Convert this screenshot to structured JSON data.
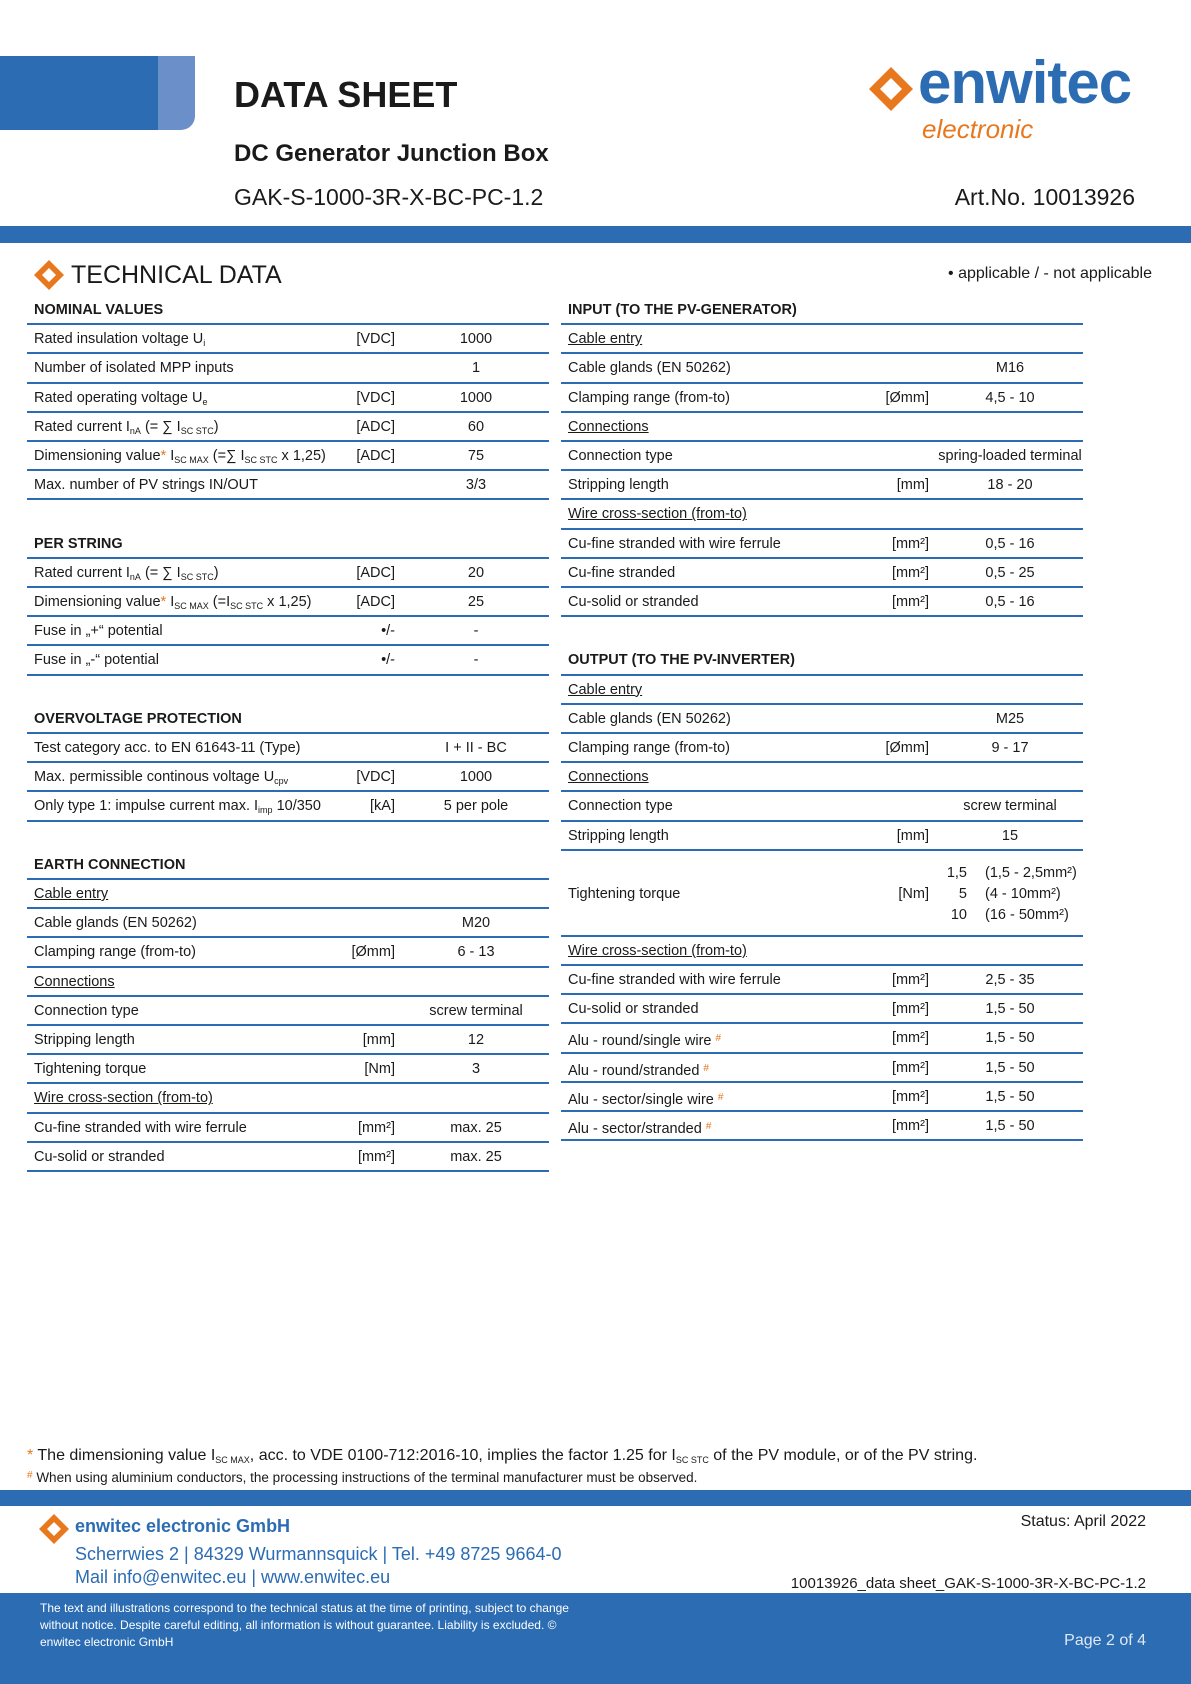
{
  "header": {
    "title": "DATA SHEET",
    "subtitle": "DC Generator Junction Box",
    "model": "GAK-S-1000-3R-X-BC-PC-1.2",
    "art_no": "Art.No. 10013926",
    "logo": {
      "name": "enwitec",
      "tagline": "electronic"
    }
  },
  "technical_data": {
    "title": "TECHNICAL DATA",
    "legend": "•  applicable  /  - not applicable",
    "columns": [
      [
        {
          "title": "NOMINAL VALUES",
          "rows": [
            {
              "label": [
                {
                  "text": "Rated insulation voltage U"
                },
                {
                  "sub": "i"
                }
              ],
              "unit": "[VDC]",
              "value": "1000"
            },
            {
              "label": [
                {
                  "text": "Number of isolated MPP inputs"
                }
              ],
              "value": "1"
            },
            {
              "label": [
                {
                  "text": "Rated operating voltage U"
                },
                {
                  "sub": "e"
                }
              ],
              "unit": "[VDC]",
              "value": "1000"
            },
            {
              "label": [
                {
                  "text": "Rated current I"
                },
                {
                  "sub": "nA"
                },
                {
                  "text": " (= ∑ I"
                },
                {
                  "sub": "SC STC"
                },
                {
                  "text": ")"
                }
              ],
              "unit": "[ADC]",
              "value": "60"
            },
            {
              "label": [
                {
                  "text": "Dimensioning value"
                },
                {
                  "mark": "*"
                },
                {
                  "text": " I"
                },
                {
                  "sub": "SC MAX"
                },
                {
                  "text": " (=∑ I"
                },
                {
                  "sub": "SC STC"
                },
                {
                  "text": " x 1,25)"
                }
              ],
              "unit": "[ADC]",
              "value": "75"
            },
            {
              "label": [
                {
                  "text": "Max. number of PV strings IN/OUT"
                }
              ],
              "value": "3/3"
            }
          ]
        },
        {
          "title": "PER STRING",
          "rows": [
            {
              "label": [
                {
                  "text": "Rated current I"
                },
                {
                  "sub": "nA"
                },
                {
                  "text": " (= ∑ I"
                },
                {
                  "sub": "SC STC"
                },
                {
                  "text": ")"
                }
              ],
              "unit": "[ADC]",
              "value": "20"
            },
            {
              "label": [
                {
                  "text": "Dimensioning value"
                },
                {
                  "mark": "*"
                },
                {
                  "text": " I"
                },
                {
                  "sub": "SC MAX"
                },
                {
                  "text": " (=I"
                },
                {
                  "sub": "SC STC"
                },
                {
                  "text": " x 1,25)"
                }
              ],
              "unit": "[ADC]",
              "value": "25"
            },
            {
              "label": [
                {
                  "text": "Fuse in „+“ potential"
                }
              ],
              "unit": "•/-",
              "value": "-"
            },
            {
              "label": [
                {
                  "text": "Fuse in „-“ potential"
                }
              ],
              "unit": "•/-",
              "value": "-"
            }
          ]
        },
        {
          "title": "OVERVOLTAGE PROTECTION",
          "rows": [
            {
              "label": [
                {
                  "text": "Test category acc. to EN 61643-11 (Type)"
                }
              ],
              "value": "I + II - BC"
            },
            {
              "label": [
                {
                  "text": "Max. permissible continous voltage U"
                },
                {
                  "sub": "cpv"
                }
              ],
              "unit": "[VDC]",
              "value": "1000"
            },
            {
              "label": [
                {
                  "text": "Only type 1: impulse current max. I"
                },
                {
                  "sub": "imp"
                },
                {
                  "text": " 10/350"
                }
              ],
              "unit": "[kA]",
              "value": "5 per pole"
            }
          ]
        },
        {
          "title": "EARTH CONNECTION",
          "rows": [
            {
              "heading": "Cable entry"
            },
            {
              "label": [
                {
                  "text": "Cable glands (EN 50262)"
                }
              ],
              "value": "M20"
            },
            {
              "label": [
                {
                  "text": "Clamping range (from-to)"
                }
              ],
              "unit": "[Ømm]",
              "value": "6 - 13"
            },
            {
              "heading": "Connections"
            },
            {
              "label": [
                {
                  "text": "Connection type"
                }
              ],
              "value": "screw terminal"
            },
            {
              "label": [
                {
                  "text": "Stripping length"
                }
              ],
              "unit": "[mm]",
              "value": "12"
            },
            {
              "label": [
                {
                  "text": "Tightening torque"
                }
              ],
              "unit": "[Nm]",
              "value": "3"
            },
            {
              "heading": "Wire cross-section (from-to)"
            },
            {
              "label": [
                {
                  "text": "Cu-fine stranded with wire ferrule"
                }
              ],
              "unit": "[mm²]",
              "value": "max. 25"
            },
            {
              "label": [
                {
                  "text": "Cu-solid or stranded"
                }
              ],
              "unit": "[mm²]",
              "value": "max. 25"
            }
          ]
        }
      ],
      [
        {
          "title": "INPUT (TO THE PV-GENERATOR)",
          "rows": [
            {
              "heading": "Cable entry"
            },
            {
              "label": [
                {
                  "text": "Cable glands (EN 50262)"
                }
              ],
              "value": "M16"
            },
            {
              "label": [
                {
                  "text": "Clamping range (from-to)"
                }
              ],
              "unit": "[Ømm]",
              "value": "4,5 - 10"
            },
            {
              "heading": "Connections"
            },
            {
              "label": [
                {
                  "text": "Connection type"
                }
              ],
              "value": "spring-loaded terminal"
            },
            {
              "label": [
                {
                  "text": "Stripping length"
                }
              ],
              "unit": "[mm]",
              "value": "18 - 20"
            },
            {
              "heading": "Wire cross-section (from-to)"
            },
            {
              "label": [
                {
                  "text": "Cu-fine stranded with wire ferrule"
                }
              ],
              "unit": "[mm²]",
              "value": "0,5 - 16"
            },
            {
              "label": [
                {
                  "text": "Cu-fine stranded"
                }
              ],
              "unit": "[mm²]",
              "value": "0,5 - 25"
            },
            {
              "label": [
                {
                  "text": "Cu-solid or stranded"
                }
              ],
              "unit": "[mm²]",
              "value": "0,5 - 16"
            }
          ]
        },
        {
          "title": "OUTPUT (TO THE PV-INVERTER)",
          "rows": [
            {
              "heading": "Cable entry"
            },
            {
              "label": [
                {
                  "text": "Cable glands (EN 50262)"
                }
              ],
              "value": "M25"
            },
            {
              "label": [
                {
                  "text": "Clamping range (from-to)"
                }
              ],
              "unit": "[Ømm]",
              "value": "9 - 17"
            },
            {
              "heading": "Connections"
            },
            {
              "label": [
                {
                  "text": "Connection type"
                }
              ],
              "value": "screw terminal"
            },
            {
              "label": [
                {
                  "text": "Stripping length"
                }
              ],
              "unit": "[mm]",
              "value": "15"
            },
            {
              "label": [
                {
                  "text": "Tightening torque"
                }
              ],
              "unit": "[Nm]",
              "value": [
                "1,5",
                "5",
                "10"
              ],
              "ranges": [
                "(1,5 - 2,5mm²)",
                "(4 - 10mm²)",
                "(16 - 50mm²)"
              ]
            },
            {
              "heading": "Wire cross-section (from-to)"
            },
            {
              "label": [
                {
                  "text": "Cu-fine stranded with wire ferrule"
                }
              ],
              "unit": "[mm²]",
              "value": "2,5 - 35"
            },
            {
              "label": [
                {
                  "text": "Cu-solid or stranded"
                }
              ],
              "unit": "[mm²]",
              "value": "1,5 - 50"
            },
            {
              "label": [
                {
                  "text": "Alu - round/single wire "
                },
                {
                  "mark": "#"
                }
              ],
              "unit": "[mm²]",
              "value": "1,5 - 50"
            },
            {
              "label": [
                {
                  "text": "Alu - round/stranded "
                },
                {
                  "mark": "#"
                }
              ],
              "unit": "[mm²]",
              "value": "1,5 - 50"
            },
            {
              "label": [
                {
                  "text": "Alu - sector/single wire "
                },
                {
                  "mark": "#"
                }
              ],
              "unit": "[mm²]",
              "value": "1,5 - 50"
            },
            {
              "label": [
                {
                  "text": "Alu - sector/stranded "
                },
                {
                  "mark": "#"
                }
              ],
              "unit": "[mm²]",
              "value": "1,5 - 50"
            }
          ]
        }
      ]
    ]
  },
  "footnotes": [
    [
      {
        "mark": "*"
      },
      {
        "text": " The dimensioning value I"
      },
      {
        "sub": "SC MAX"
      },
      {
        "text": ", acc. to VDE 0100-712:2016-10, implies the factor 1.25 for I"
      },
      {
        "sub": "SC STC"
      },
      {
        "text": "  of the PV module, or of the PV string."
      }
    ],
    [
      {
        "mark": "#"
      },
      {
        "text": " When using aluminium conductors, the processing instructions of the terminal manufacturer must be observed."
      }
    ]
  ],
  "footer": {
    "company": "enwitec electronic GmbH",
    "address": "Scherrwies 2 | 84329 Wurmannsquick | Tel. +49 8725 9664-0",
    "contact": "Mail info@enwitec.eu | www.enwitec.eu",
    "status": "Status:  April 2022",
    "document": "10013926_data sheet_GAK-S-1000-3R-X-BC-PC-1.2",
    "disclaimer": [
      "The text and illustrations correspond to the technical status at the time of printing, subject to change",
      "without notice. Despite careful editing, all information is without guarantee. Liability is excluded. ©",
      "enwitec electronic GmbH"
    ],
    "page": "Page 2 of 4"
  }
}
